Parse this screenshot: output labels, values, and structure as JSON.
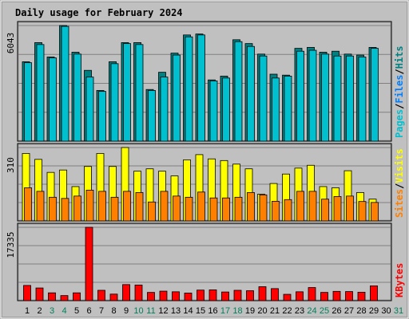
{
  "chart_data": {
    "type": "bar",
    "title": "Daily usage for February 2024",
    "categories": [
      "1",
      "2",
      "3",
      "4",
      "5",
      "6",
      "7",
      "8",
      "9",
      "10",
      "11",
      "12",
      "13",
      "14",
      "15",
      "16",
      "17",
      "18",
      "19",
      "20",
      "21",
      "22",
      "23",
      "24",
      "25",
      "26",
      "27",
      "28",
      "29",
      "30",
      "31"
    ],
    "weekend_days": [
      "3",
      "4",
      "10",
      "11",
      "17",
      "18",
      "24",
      "25",
      "31"
    ],
    "colors": {
      "pages": "#00c0d0",
      "files": "#0080ff",
      "hits": "#008080",
      "sites": "#ff8000",
      "visits": "#ffff00",
      "kbytes": "#ff0000",
      "weekday_label": "#000000",
      "weekend_label": "#00805c",
      "title": "#0000ff",
      "panel": "#c0c0c0",
      "frame": "#a0a0a0"
    },
    "panels": [
      {
        "axis_max_label": "6043",
        "ylim": [
          0,
          6043
        ],
        "legend": [
          {
            "text": "Pages",
            "color": "#00c0d0"
          },
          {
            "text": "Files",
            "color": "#0080ff"
          },
          {
            "text": "Hits",
            "color": "#008080"
          }
        ],
        "series": [
          {
            "name": "Hits",
            "values": [
              4150,
              5150,
              4400,
              6043,
              4650,
              3700,
              2650,
              4150,
              5150,
              5150,
              2700,
              3600,
              4600,
              5550,
              5600,
              3200,
              3400,
              5300,
              5100,
              4550,
              3500,
              3450,
              4850,
              4900,
              4650,
              4700,
              4550,
              4500,
              4900,
              null,
              null
            ]
          },
          {
            "name": "Pages",
            "values": [
              4100,
              5050,
              4350,
              6000,
              4550,
              3350,
              2600,
              4050,
              5100,
              5050,
              2650,
              3350,
              4500,
              5450,
              5550,
              3150,
              3300,
              5200,
              4950,
              4450,
              3300,
              3400,
              4700,
              4750,
              4550,
              4450,
              4450,
              4400,
              4850,
              null,
              null
            ]
          }
        ]
      },
      {
        "axis_max_label": "310",
        "ylim": [
          0,
          310
        ],
        "legend": [
          {
            "text": "Sites",
            "color": "#ff8000"
          },
          {
            "text": "Visits",
            "color": "#ffff00"
          }
        ],
        "series": [
          {
            "name": "Visits",
            "values": [
              285,
              260,
              205,
              215,
              145,
              230,
              285,
              230,
              310,
              210,
              220,
              210,
              190,
              258,
              280,
              262,
              255,
              240,
              220,
              113,
              158,
              198,
              223,
              235,
              145,
              140,
              212,
              120,
              92,
              null,
              null
            ]
          },
          {
            "name": "Sites",
            "values": [
              140,
              125,
              100,
              95,
              105,
              130,
              125,
              100,
              125,
              120,
              80,
              125,
              105,
              100,
              122,
              97,
              97,
              100,
              120,
              110,
              83,
              90,
              125,
              125,
              92,
              103,
              105,
              82,
              78,
              null,
              null
            ]
          }
        ]
      },
      {
        "axis_max_label": "17335",
        "ylim": [
          0,
          17335
        ],
        "legend": [
          {
            "text": "KBytes",
            "color": "#ff0000"
          }
        ],
        "series": [
          {
            "name": "KBytes",
            "values": [
              3600,
              3000,
              1850,
              1200,
              1850,
              17335,
              2450,
              1550,
              3800,
              3700,
              1950,
              2250,
              2100,
              1800,
              2500,
              2550,
              2050,
              2450,
              2350,
              3300,
              2850,
              1500,
              2100,
              3100,
              1950,
              2200,
              2150,
              2000,
              3500,
              null,
              null
            ]
          }
        ]
      }
    ]
  }
}
